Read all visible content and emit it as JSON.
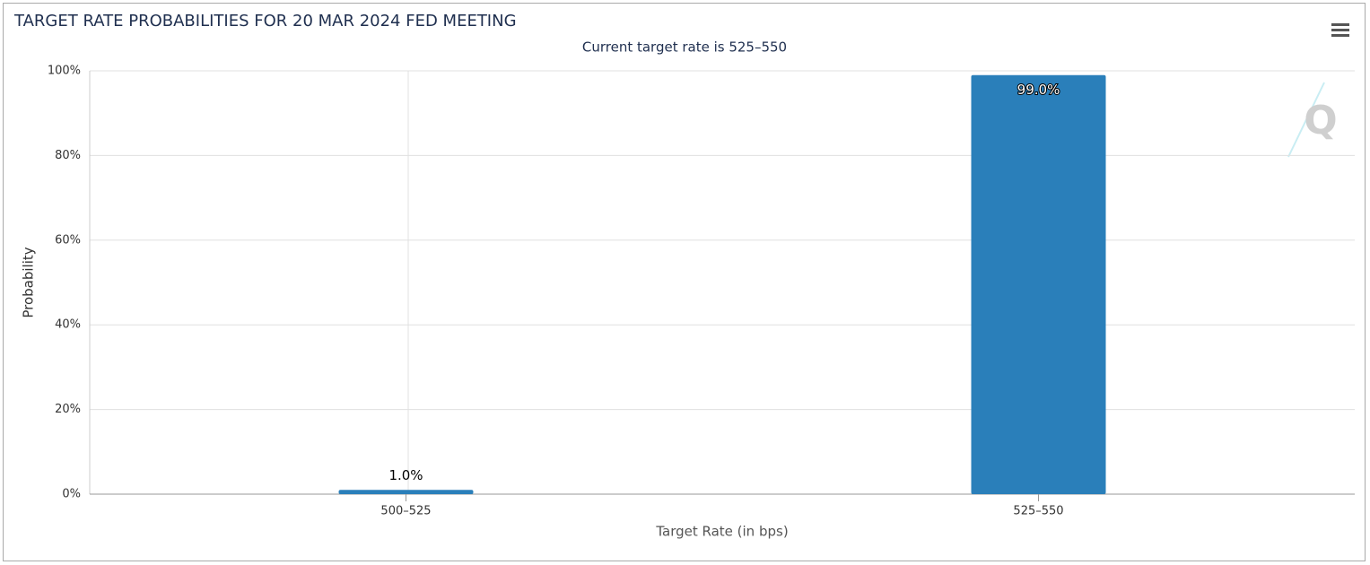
{
  "chart_data": {
    "type": "bar",
    "title": "TARGET RATE PROBABILITIES FOR 20 MAR 2024 FED MEETING",
    "subtitle": "Current target rate is 525–550",
    "x_label": "Target Rate (in bps)",
    "y_label": "Probability",
    "categories": [
      "500–525",
      "525–550"
    ],
    "values": [
      1.0,
      99.0
    ],
    "value_labels": [
      "1.0%",
      "99.0%"
    ],
    "color": "#2a7fba",
    "ylim": [
      0,
      100
    ],
    "yticks": [
      {
        "value": 0,
        "label": "0%"
      },
      {
        "value": 20,
        "label": "20%"
      },
      {
        "value": 40,
        "label": "40%"
      },
      {
        "value": 60,
        "label": "60%"
      },
      {
        "value": 80,
        "label": "80%"
      },
      {
        "value": 100,
        "label": "100%"
      }
    ],
    "grid": true
  }
}
